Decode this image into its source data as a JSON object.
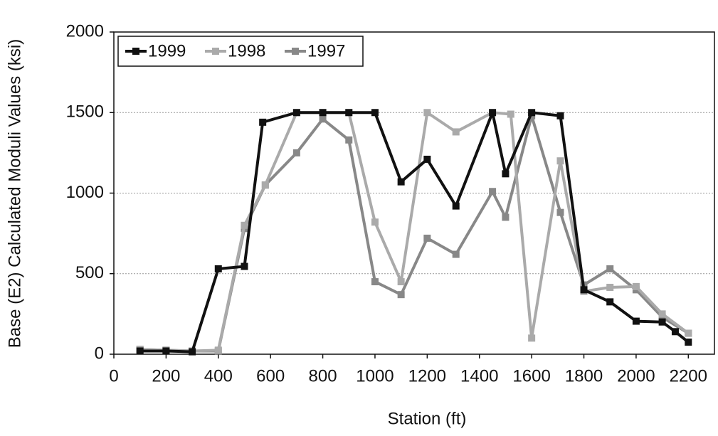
{
  "chart_data": {
    "type": "line",
    "x_label": "Station (ft)",
    "y_label": "Base (E2) Calculated Moduli Values (ksi)",
    "xlim": [
      0,
      2300
    ],
    "xticks": [
      0,
      200,
      400,
      600,
      800,
      1000,
      1200,
      1400,
      1600,
      1800,
      2000,
      2200
    ],
    "ylim": [
      0,
      2000
    ],
    "yticks": [
      0,
      500,
      1000,
      1500,
      2000
    ],
    "grid": true,
    "legend": "top-left",
    "series": [
      {
        "name": "1999",
        "color": "#111111",
        "x": [
          100,
          200,
          300,
          400,
          500,
          570,
          700,
          800,
          900,
          1000,
          1100,
          1200,
          1310,
          1450,
          1500,
          1600,
          1710,
          1800,
          1900,
          2000,
          2100,
          2150,
          2200
        ],
        "values": [
          20,
          20,
          15,
          530,
          545,
          1440,
          1500,
          1500,
          1500,
          1500,
          1070,
          1210,
          920,
          1500,
          1120,
          1500,
          1480,
          400,
          325,
          205,
          200,
          140,
          75
        ]
      },
      {
        "name": "1998",
        "color": "#aaaaaa",
        "x": [
          100,
          200,
          300,
          400,
          500,
          580,
          700,
          800,
          900,
          1000,
          1100,
          1200,
          1310,
          1450,
          1520,
          1600,
          1710,
          1800,
          1900,
          2000,
          2100,
          2200
        ],
        "values": [
          30,
          25,
          20,
          25,
          800,
          1050,
          1500,
          1500,
          1500,
          820,
          450,
          1500,
          1380,
          1500,
          1490,
          100,
          1200,
          390,
          415,
          420,
          250,
          130
        ]
      },
      {
        "name": "1997",
        "color": "#888888",
        "x": [
          100,
          200,
          300,
          400,
          500,
          580,
          700,
          800,
          900,
          1000,
          1100,
          1200,
          1310,
          1450,
          1500,
          1600,
          1710,
          1800,
          1900,
          2000,
          2100,
          2200
        ],
        "values": [
          30,
          25,
          20,
          20,
          780,
          1050,
          1250,
          1460,
          1330,
          450,
          370,
          720,
          620,
          1010,
          850,
          1480,
          880,
          430,
          530,
          400,
          230,
          130
        ]
      }
    ]
  }
}
